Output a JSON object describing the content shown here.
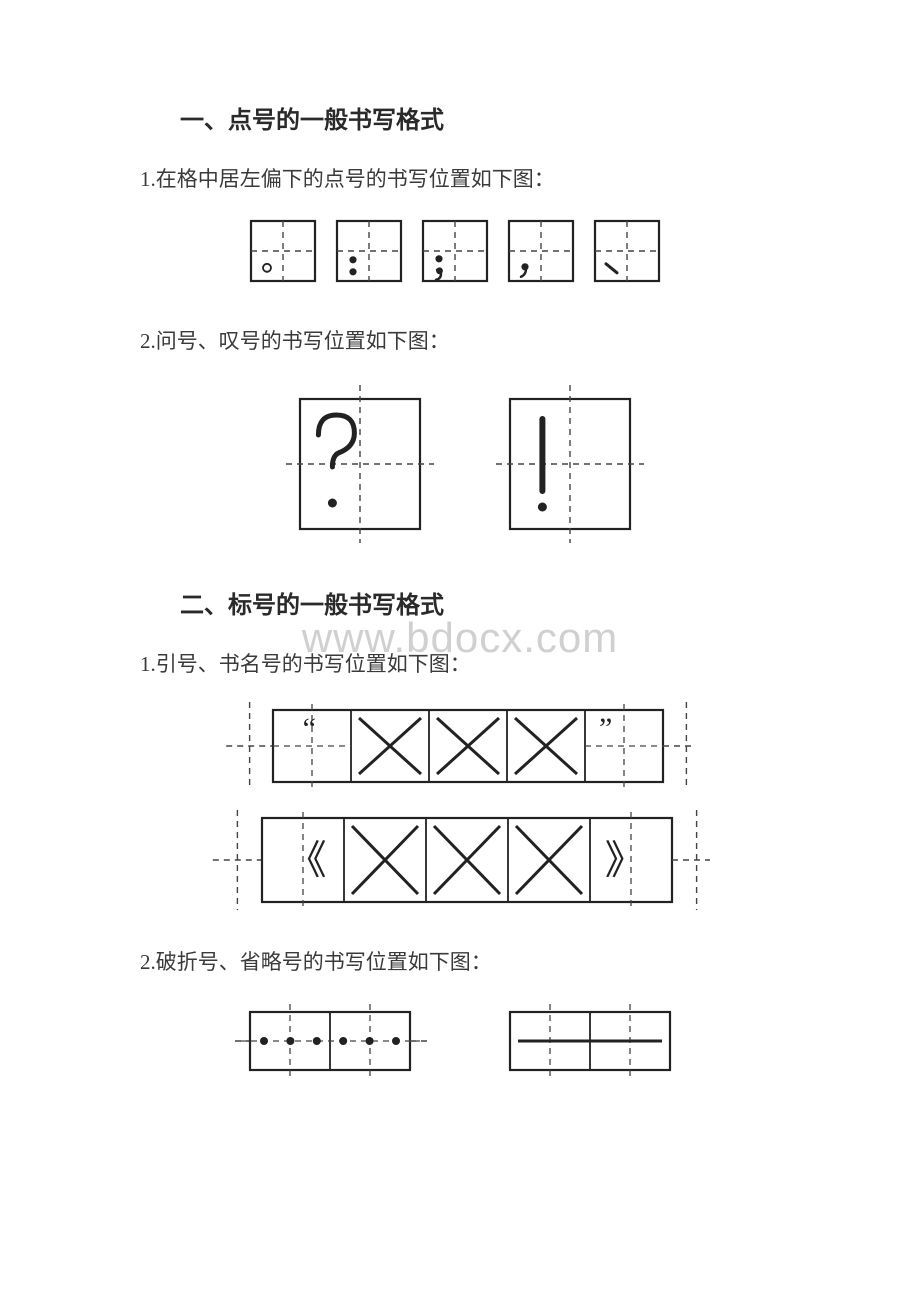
{
  "section1": {
    "heading": "一、点号的一般书写格式",
    "item1": "1.在格中居左偏下的点号的书写位置如下图：",
    "item2": "2.问号、叹号的书写位置如下图："
  },
  "section2": {
    "heading": "二、标号的一般书写格式",
    "item1": "1.引号、书名号的书写位置如下图：",
    "item2": "2.破折号、省略号的书写位置如下图："
  },
  "watermark": "www.bdocx.com",
  "marks": {
    "row1": [
      "period",
      "colon",
      "semicolon",
      "comma",
      "pause"
    ],
    "row2": [
      "question",
      "exclaim"
    ],
    "row3a_open": "“",
    "row3a_close": "”",
    "row3b_open": "《",
    "row3b_close": "》"
  },
  "style": {
    "box_stroke": "#222222",
    "box_stroke_w": 2.2,
    "guide_stroke": "#444444",
    "guide_dash": "6 5",
    "mark_color": "#222222",
    "small_cell": 64,
    "big_cell": 120,
    "med_cell": 78,
    "low_cell": 58,
    "bg": "#ffffff"
  }
}
